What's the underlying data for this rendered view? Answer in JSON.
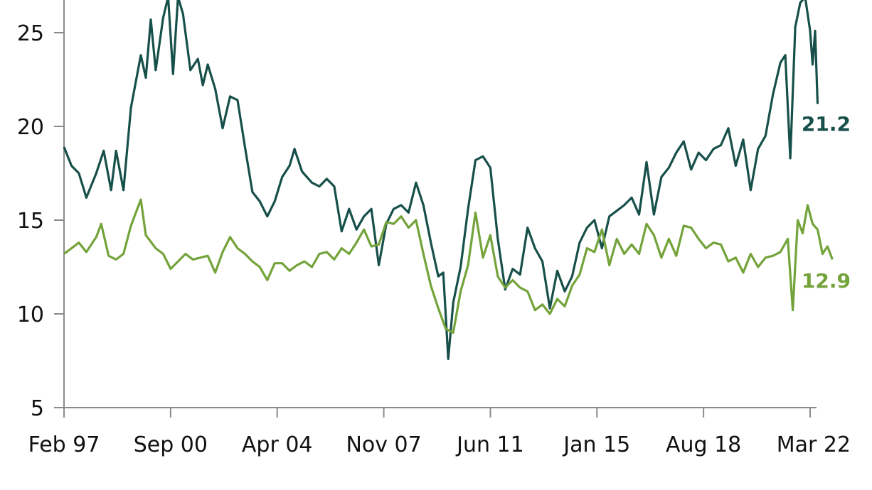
{
  "chart_data": {
    "type": "line",
    "title": "",
    "xlabel": "",
    "ylabel": "",
    "ylim": [
      5,
      27
    ],
    "yticks": [
      5,
      10,
      15,
      20,
      25
    ],
    "xlim": [
      "1997-02",
      "2022-03"
    ],
    "xticks": [
      {
        "date": "1997-02",
        "label": "Feb 97"
      },
      {
        "date": "2000-09",
        "label": "Sep 00"
      },
      {
        "date": "2004-04",
        "label": "Apr 04"
      },
      {
        "date": "2007-11",
        "label": "Nov 07"
      },
      {
        "date": "2011-06",
        "label": "Jun 11"
      },
      {
        "date": "2015-01",
        "label": "Jan 15"
      },
      {
        "date": "2018-08",
        "label": "Aug 18"
      },
      {
        "date": "2022-03",
        "label": "Mar 22"
      }
    ],
    "grid": false,
    "legend": "none",
    "series": [
      {
        "color": "#17504a",
        "end_label": "21.2",
        "points": [
          [
            "1997-02",
            18.9
          ],
          [
            "1997-05",
            17.9
          ],
          [
            "1997-08",
            17.5
          ],
          [
            "1997-11",
            16.2
          ],
          [
            "1998-03",
            17.5
          ],
          [
            "1998-06",
            18.7
          ],
          [
            "1998-09",
            16.6
          ],
          [
            "1998-11",
            18.7
          ],
          [
            "1999-02",
            16.6
          ],
          [
            "1999-05",
            21.0
          ],
          [
            "1999-09",
            23.8
          ],
          [
            "1999-11",
            22.6
          ],
          [
            "2000-01",
            25.7
          ],
          [
            "2000-03",
            23.0
          ],
          [
            "2000-06",
            25.8
          ],
          [
            "2000-08",
            26.9
          ],
          [
            "2000-10",
            22.8
          ],
          [
            "2000-12",
            26.9
          ],
          [
            "2001-02",
            26.0
          ],
          [
            "2001-05",
            23.0
          ],
          [
            "2001-08",
            23.6
          ],
          [
            "2001-10",
            22.2
          ],
          [
            "2001-12",
            23.3
          ],
          [
            "2002-03",
            22.0
          ],
          [
            "2002-06",
            19.9
          ],
          [
            "2002-09",
            21.6
          ],
          [
            "2002-12",
            21.4
          ],
          [
            "2003-03",
            18.9
          ],
          [
            "2003-06",
            16.5
          ],
          [
            "2003-09",
            16.0
          ],
          [
            "2003-12",
            15.2
          ],
          [
            "2004-03",
            16.0
          ],
          [
            "2004-06",
            17.3
          ],
          [
            "2004-09",
            17.9
          ],
          [
            "2004-11",
            18.8
          ],
          [
            "2005-02",
            17.6
          ],
          [
            "2005-06",
            17.0
          ],
          [
            "2005-09",
            16.8
          ],
          [
            "2005-12",
            17.2
          ],
          [
            "2006-03",
            16.8
          ],
          [
            "2006-06",
            14.4
          ],
          [
            "2006-09",
            15.6
          ],
          [
            "2006-12",
            14.5
          ],
          [
            "2007-03",
            15.2
          ],
          [
            "2007-06",
            15.6
          ],
          [
            "2007-09",
            12.6
          ],
          [
            "2007-12",
            14.8
          ],
          [
            "2008-03",
            15.6
          ],
          [
            "2008-06",
            15.8
          ],
          [
            "2008-09",
            15.4
          ],
          [
            "2008-12",
            17.0
          ],
          [
            "2009-03",
            15.8
          ],
          [
            "2009-06",
            13.8
          ],
          [
            "2009-09",
            12.0
          ],
          [
            "2009-11",
            12.2
          ],
          [
            "2010-01",
            7.6
          ],
          [
            "2010-03",
            10.6
          ],
          [
            "2010-06",
            12.5
          ],
          [
            "2010-09",
            15.6
          ],
          [
            "2010-12",
            18.2
          ],
          [
            "2011-03",
            18.4
          ],
          [
            "2011-06",
            17.8
          ],
          [
            "2011-09",
            14.0
          ],
          [
            "2011-12",
            11.3
          ],
          [
            "2012-03",
            12.4
          ],
          [
            "2012-06",
            12.1
          ],
          [
            "2012-09",
            14.6
          ],
          [
            "2012-12",
            13.5
          ],
          [
            "2013-03",
            12.8
          ],
          [
            "2013-06",
            10.3
          ],
          [
            "2013-09",
            12.3
          ],
          [
            "2013-12",
            11.2
          ],
          [
            "2014-03",
            12.0
          ],
          [
            "2014-06",
            13.8
          ],
          [
            "2014-09",
            14.6
          ],
          [
            "2014-12",
            15.0
          ],
          [
            "2015-03",
            13.5
          ],
          [
            "2015-06",
            15.2
          ],
          [
            "2015-09",
            15.5
          ],
          [
            "2015-12",
            15.8
          ],
          [
            "2016-03",
            16.2
          ],
          [
            "2016-06",
            15.3
          ],
          [
            "2016-09",
            18.1
          ],
          [
            "2016-12",
            15.3
          ],
          [
            "2017-03",
            17.3
          ],
          [
            "2017-06",
            17.8
          ],
          [
            "2017-09",
            18.6
          ],
          [
            "2017-12",
            19.2
          ],
          [
            "2018-03",
            17.7
          ],
          [
            "2018-06",
            18.6
          ],
          [
            "2018-09",
            18.2
          ],
          [
            "2018-12",
            18.8
          ],
          [
            "2019-03",
            19.0
          ],
          [
            "2019-06",
            19.9
          ],
          [
            "2019-09",
            17.9
          ],
          [
            "2019-12",
            19.3
          ],
          [
            "2020-03",
            16.6
          ],
          [
            "2020-06",
            18.8
          ],
          [
            "2020-09",
            19.5
          ],
          [
            "2020-12",
            21.7
          ],
          [
            "2021-03",
            23.4
          ],
          [
            "2021-05",
            23.8
          ],
          [
            "2021-07",
            18.3
          ],
          [
            "2021-09",
            25.3
          ],
          [
            "2021-11",
            26.6
          ],
          [
            "2022-01",
            26.9
          ],
          [
            "2022-02",
            26.0
          ],
          [
            "2022-03",
            25.1
          ],
          [
            "2022-04",
            23.3
          ],
          [
            "2022-05",
            25.1
          ],
          [
            "2022-06",
            21.2
          ]
        ]
      },
      {
        "color": "#73a33a",
        "end_label": "12.9",
        "points": [
          [
            "1997-02",
            13.2
          ],
          [
            "1997-05",
            13.5
          ],
          [
            "1997-08",
            13.8
          ],
          [
            "1997-11",
            13.3
          ],
          [
            "1998-03",
            14.1
          ],
          [
            "1998-05",
            14.8
          ],
          [
            "1998-08",
            13.1
          ],
          [
            "1998-11",
            12.9
          ],
          [
            "1999-02",
            13.2
          ],
          [
            "1999-05",
            14.7
          ],
          [
            "1999-09",
            16.1
          ],
          [
            "1999-11",
            14.2
          ],
          [
            "2000-03",
            13.5
          ],
          [
            "2000-06",
            13.2
          ],
          [
            "2000-09",
            12.4
          ],
          [
            "2000-12",
            12.8
          ],
          [
            "2001-03",
            13.2
          ],
          [
            "2001-06",
            12.9
          ],
          [
            "2001-09",
            13.0
          ],
          [
            "2001-12",
            13.1
          ],
          [
            "2002-03",
            12.2
          ],
          [
            "2002-06",
            13.3
          ],
          [
            "2002-09",
            14.1
          ],
          [
            "2002-12",
            13.5
          ],
          [
            "2003-03",
            13.2
          ],
          [
            "2003-06",
            12.8
          ],
          [
            "2003-09",
            12.5
          ],
          [
            "2003-12",
            11.8
          ],
          [
            "2004-03",
            12.7
          ],
          [
            "2004-06",
            12.7
          ],
          [
            "2004-09",
            12.3
          ],
          [
            "2004-12",
            12.6
          ],
          [
            "2005-03",
            12.8
          ],
          [
            "2005-06",
            12.5
          ],
          [
            "2005-09",
            13.2
          ],
          [
            "2005-12",
            13.3
          ],
          [
            "2006-03",
            12.9
          ],
          [
            "2006-06",
            13.5
          ],
          [
            "2006-09",
            13.2
          ],
          [
            "2006-12",
            13.8
          ],
          [
            "2007-03",
            14.5
          ],
          [
            "2007-06",
            13.6
          ],
          [
            "2007-09",
            13.7
          ],
          [
            "2007-12",
            14.9
          ],
          [
            "2008-03",
            14.8
          ],
          [
            "2008-06",
            15.2
          ],
          [
            "2008-09",
            14.6
          ],
          [
            "2008-12",
            15.0
          ],
          [
            "2009-03",
            13.2
          ],
          [
            "2009-06",
            11.5
          ],
          [
            "2009-09",
            10.3
          ],
          [
            "2009-12",
            9.2
          ],
          [
            "2010-03",
            9.0
          ],
          [
            "2010-06",
            11.2
          ],
          [
            "2010-09",
            12.6
          ],
          [
            "2010-12",
            15.4
          ],
          [
            "2011-03",
            13.0
          ],
          [
            "2011-06",
            14.2
          ],
          [
            "2011-09",
            12.0
          ],
          [
            "2011-12",
            11.4
          ],
          [
            "2012-03",
            11.8
          ],
          [
            "2012-06",
            11.4
          ],
          [
            "2012-09",
            11.2
          ],
          [
            "2012-12",
            10.2
          ],
          [
            "2013-03",
            10.5
          ],
          [
            "2013-06",
            10.0
          ],
          [
            "2013-09",
            10.8
          ],
          [
            "2013-12",
            10.4
          ],
          [
            "2014-03",
            11.5
          ],
          [
            "2014-06",
            12.1
          ],
          [
            "2014-09",
            13.5
          ],
          [
            "2014-12",
            13.3
          ],
          [
            "2015-03",
            14.5
          ],
          [
            "2015-06",
            12.6
          ],
          [
            "2015-09",
            14.0
          ],
          [
            "2015-12",
            13.2
          ],
          [
            "2016-03",
            13.7
          ],
          [
            "2016-06",
            13.2
          ],
          [
            "2016-09",
            14.8
          ],
          [
            "2016-12",
            14.2
          ],
          [
            "2017-03",
            13.0
          ],
          [
            "2017-06",
            14.0
          ],
          [
            "2017-09",
            13.1
          ],
          [
            "2017-12",
            14.7
          ],
          [
            "2018-03",
            14.6
          ],
          [
            "2018-06",
            14.0
          ],
          [
            "2018-09",
            13.5
          ],
          [
            "2018-12",
            13.8
          ],
          [
            "2019-03",
            13.7
          ],
          [
            "2019-06",
            12.8
          ],
          [
            "2019-09",
            13.0
          ],
          [
            "2019-12",
            12.2
          ],
          [
            "2020-03",
            13.2
          ],
          [
            "2020-06",
            12.5
          ],
          [
            "2020-09",
            13.0
          ],
          [
            "2020-12",
            13.1
          ],
          [
            "2021-03",
            13.3
          ],
          [
            "2021-06",
            14.0
          ],
          [
            "2021-08",
            10.2
          ],
          [
            "2021-10",
            15.0
          ],
          [
            "2021-12",
            14.3
          ],
          [
            "2022-02",
            15.8
          ],
          [
            "2022-04",
            14.8
          ],
          [
            "2022-06",
            14.5
          ],
          [
            "2022-08",
            13.2
          ],
          [
            "2022-10",
            13.6
          ],
          [
            "2022-12",
            12.9
          ]
        ]
      }
    ]
  }
}
